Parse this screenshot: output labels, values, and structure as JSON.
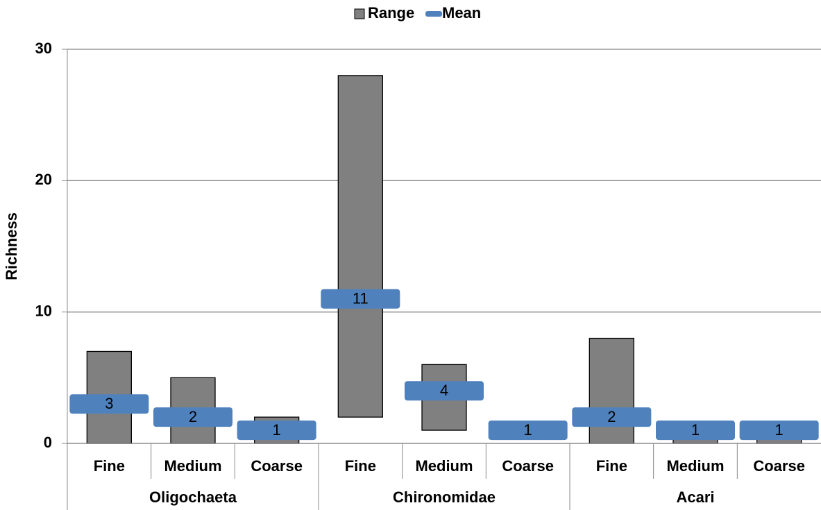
{
  "chart_data": {
    "type": "floating_bar",
    "y_label": "Richness",
    "groups": [
      {
        "name": "Oligochaeta",
        "categories": [
          "Fine",
          "Medium",
          "Coarse"
        ]
      },
      {
        "name": "Chironomidae",
        "categories": [
          "Fine",
          "Medium",
          "Coarse"
        ]
      },
      {
        "name": "Acari",
        "categories": [
          "Fine",
          "Medium",
          "Coarse"
        ]
      }
    ],
    "series": [
      {
        "name": "Range",
        "color": "#808080",
        "low": [
          0,
          0,
          0,
          2,
          1,
          1,
          0,
          0,
          0
        ],
        "high": [
          7,
          5,
          2,
          28,
          6,
          1,
          8,
          1,
          1
        ]
      },
      {
        "name": "Mean",
        "color": "#4f81bd",
        "values": [
          3,
          2,
          1,
          11,
          4,
          1,
          2,
          1,
          1
        ]
      }
    ],
    "ylim": [
      0,
      30
    ],
    "yticks": [
      0,
      10,
      20,
      30
    ],
    "grid": true,
    "legend": "top"
  }
}
